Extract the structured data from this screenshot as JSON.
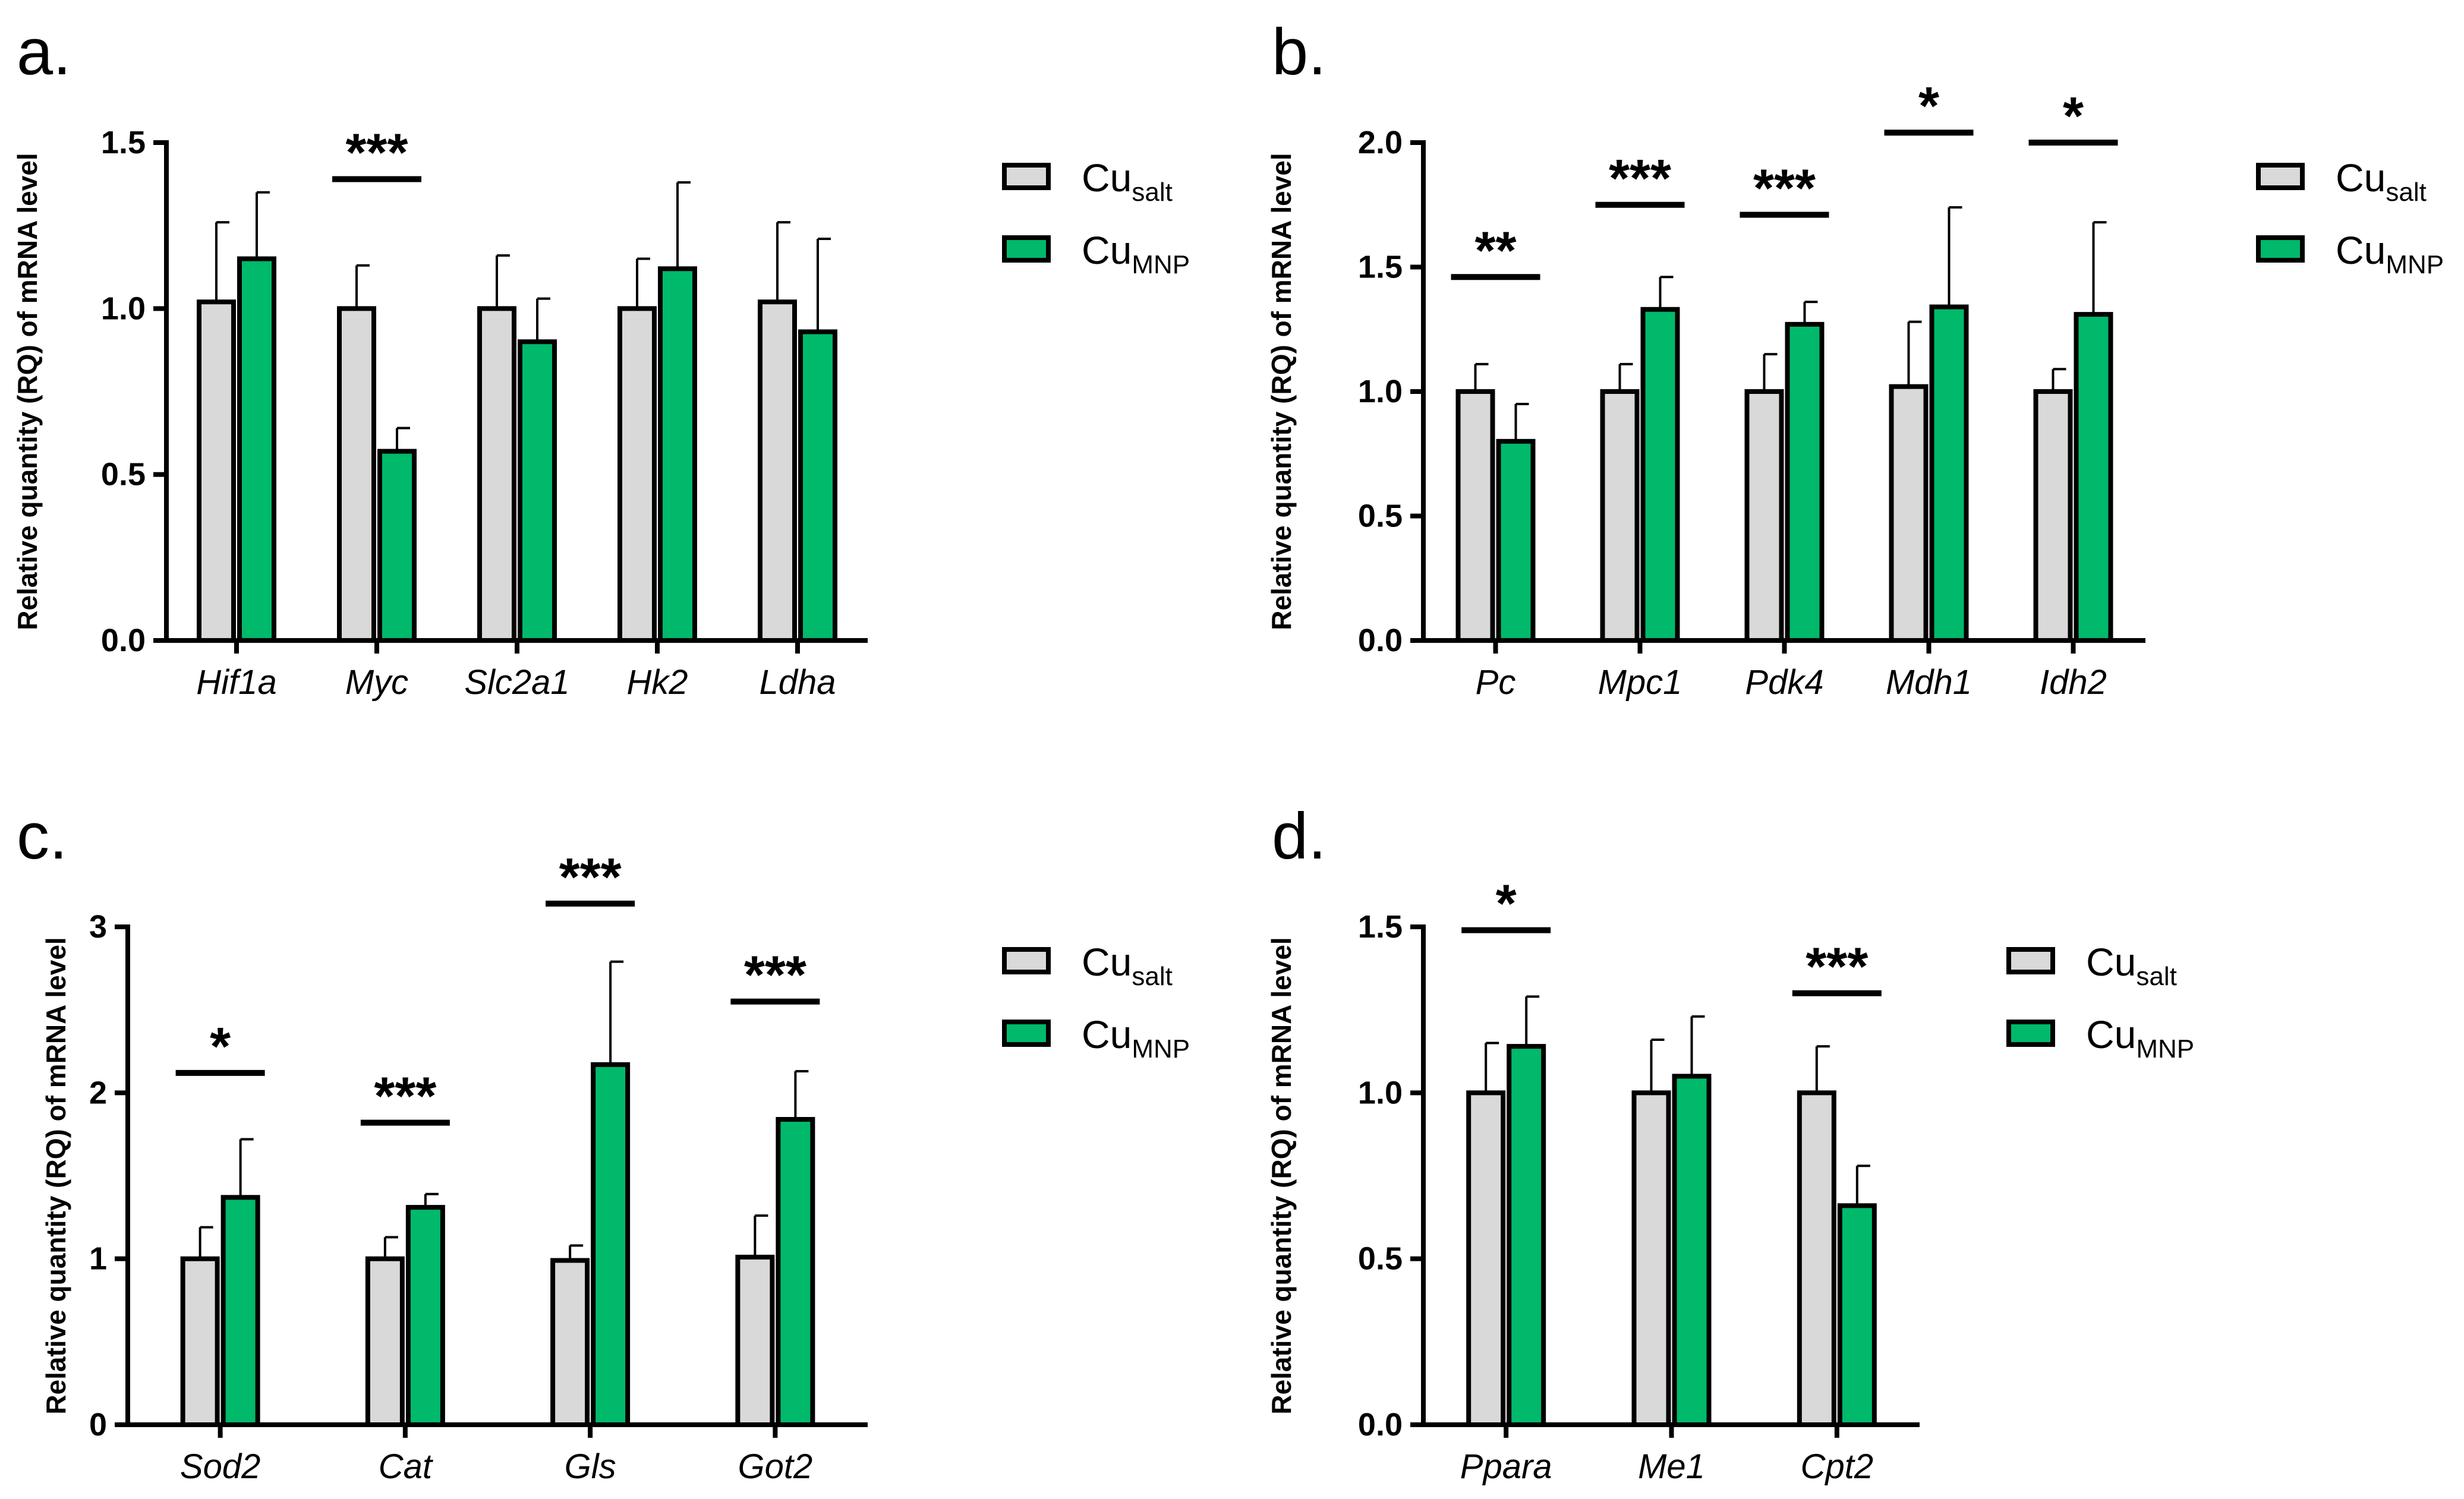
{
  "legend": {
    "salt_base": "Cu",
    "salt_sub": "salt",
    "mnp_base": "Cu",
    "mnp_sub": "MNP"
  },
  "colors": {
    "salt": "#d9d9d9",
    "mnp": "#00b96b",
    "stroke": "#000000"
  },
  "chart_data": [
    {
      "type": "bar",
      "panel": "a.",
      "ylabel": "Relative quantity (RQ) of mRNA level",
      "ylim": [
        0,
        1.5
      ],
      "yticks": [
        "0.0",
        "0.5",
        "1.0",
        "1.5"
      ],
      "categories": [
        "Hif1a",
        "Myc",
        "Slc2a1",
        "Hk2",
        "Ldha"
      ],
      "series": [
        {
          "name": "Cu_salt",
          "values": [
            1.02,
            1.0,
            1.0,
            1.0,
            1.02
          ],
          "errors": [
            0.24,
            0.13,
            0.16,
            0.15,
            0.24
          ]
        },
        {
          "name": "Cu_MNP",
          "values": [
            1.15,
            0.57,
            0.9,
            1.12,
            0.93
          ],
          "errors": [
            0.2,
            0.07,
            0.13,
            0.26,
            0.28
          ]
        }
      ],
      "significance": [
        {
          "category": "Myc",
          "label": "***",
          "y": 1.39
        }
      ]
    },
    {
      "type": "bar",
      "panel": "b.",
      "ylabel": "Relative quantity (RQ) of mRNA level",
      "ylim": [
        0,
        2.0
      ],
      "yticks": [
        "0.0",
        "0.5",
        "1.0",
        "1.5",
        "2.0"
      ],
      "categories": [
        "Pc",
        "Mpc1",
        "Pdk4",
        "Mdh1",
        "Idh2"
      ],
      "series": [
        {
          "name": "Cu_salt",
          "values": [
            1.0,
            1.0,
            1.0,
            1.02,
            1.0
          ],
          "errors": [
            0.11,
            0.11,
            0.15,
            0.26,
            0.09
          ]
        },
        {
          "name": "Cu_MNP",
          "values": [
            0.8,
            1.33,
            1.27,
            1.34,
            1.31
          ],
          "errors": [
            0.15,
            0.13,
            0.09,
            0.4,
            0.37
          ]
        }
      ],
      "significance": [
        {
          "category": "Pc",
          "label": "**",
          "y": 1.46
        },
        {
          "category": "Mpc1",
          "label": "***",
          "y": 1.75
        },
        {
          "category": "Pdk4",
          "label": "***",
          "y": 1.71
        },
        {
          "category": "Mdh1",
          "label": "*",
          "y": 2.04
        },
        {
          "category": "Idh2",
          "label": "*",
          "y": 2.0
        }
      ]
    },
    {
      "type": "bar",
      "panel": "c.",
      "ylabel": "Relative quantity (RQ) of mRNA level",
      "ylim": [
        0,
        3
      ],
      "yticks": [
        "0",
        "1",
        "2",
        "3"
      ],
      "categories": [
        "Sod2",
        "Cat",
        "Gls",
        "Got2"
      ],
      "series": [
        {
          "name": "Cu_salt",
          "values": [
            1.0,
            1.0,
            0.99,
            1.01
          ],
          "errors": [
            0.19,
            0.13,
            0.09,
            0.25
          ]
        },
        {
          "name": "Cu_MNP",
          "values": [
            1.37,
            1.31,
            2.17,
            1.84
          ],
          "errors": [
            0.35,
            0.08,
            0.62,
            0.29
          ]
        }
      ],
      "significance": [
        {
          "category": "Sod2",
          "label": "*",
          "y": 2.12
        },
        {
          "category": "Cat",
          "label": "***",
          "y": 1.82
        },
        {
          "category": "Gls",
          "label": "***",
          "y": 3.14
        },
        {
          "category": "Got2",
          "label": "***",
          "y": 2.55
        }
      ]
    },
    {
      "type": "bar",
      "panel": "d.",
      "ylabel": "Relative quantity (RQ) of mRNA level",
      "ylim": [
        0,
        1.5
      ],
      "yticks": [
        "0.0",
        "0.5",
        "1.0",
        "1.5"
      ],
      "categories": [
        "Ppara",
        "Me1",
        "Cpt2"
      ],
      "series": [
        {
          "name": "Cu_salt",
          "values": [
            1.0,
            1.0,
            1.0
          ],
          "errors": [
            0.15,
            0.16,
            0.14
          ]
        },
        {
          "name": "Cu_MNP",
          "values": [
            1.14,
            1.05,
            0.66
          ],
          "errors": [
            0.15,
            0.18,
            0.12
          ]
        }
      ],
      "significance": [
        {
          "category": "Ppara",
          "label": "*",
          "y": 1.49
        },
        {
          "category": "Cpt2",
          "label": "***",
          "y": 1.3
        }
      ]
    }
  ]
}
